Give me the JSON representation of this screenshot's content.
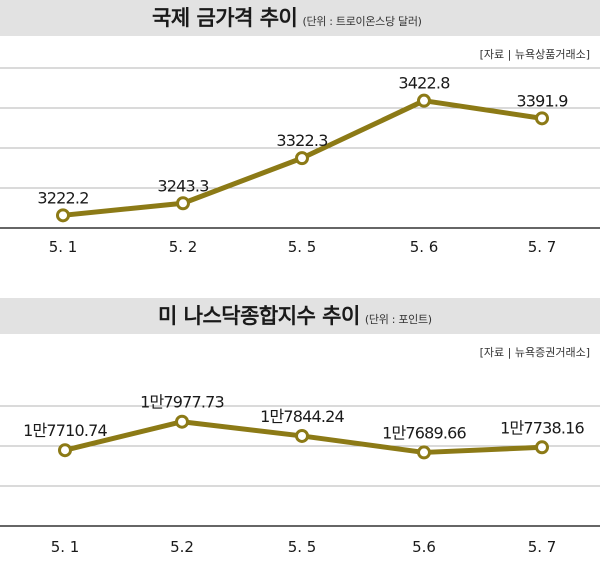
{
  "chart_data": [
    {
      "type": "line",
      "title": "국제 금가격 추이",
      "unit_label": "(단위 : 트로이온스당 달러)",
      "source": "[자료 | 뉴욕상품거래소]",
      "categories": [
        "5. 1",
        "5. 2",
        "5. 5",
        "5. 6",
        "5. 7"
      ],
      "series": [
        {
          "values": [
            3222.2,
            3243.3,
            3322.3,
            3422.8,
            3391.9
          ],
          "labels": [
            "3222.2",
            "3243.3",
            "3322.3",
            "3422.8",
            "3391.9"
          ]
        }
      ],
      "ylim": [
        3200,
        3480
      ],
      "grid": true,
      "line_color": "#8c7a16"
    },
    {
      "type": "line",
      "title": "미 나스닥종합지수 추이",
      "unit_label": "(단위 : 포인트)",
      "source": "[자료 | 뉴욕증권거래소]",
      "categories": [
        "5. 1",
        "5.2",
        "5. 5",
        "5.6",
        "5. 7"
      ],
      "series": [
        {
          "values": [
            17710.74,
            17977.73,
            17844.24,
            17689.66,
            17738.16
          ],
          "labels": [
            "1만7710.74",
            "1만7977.73",
            "1만7844.24",
            "1만7689.66",
            "1만7738.16"
          ]
        }
      ],
      "ylim": [
        17000,
        18500
      ],
      "grid": true,
      "line_color": "#8c7a16"
    }
  ]
}
